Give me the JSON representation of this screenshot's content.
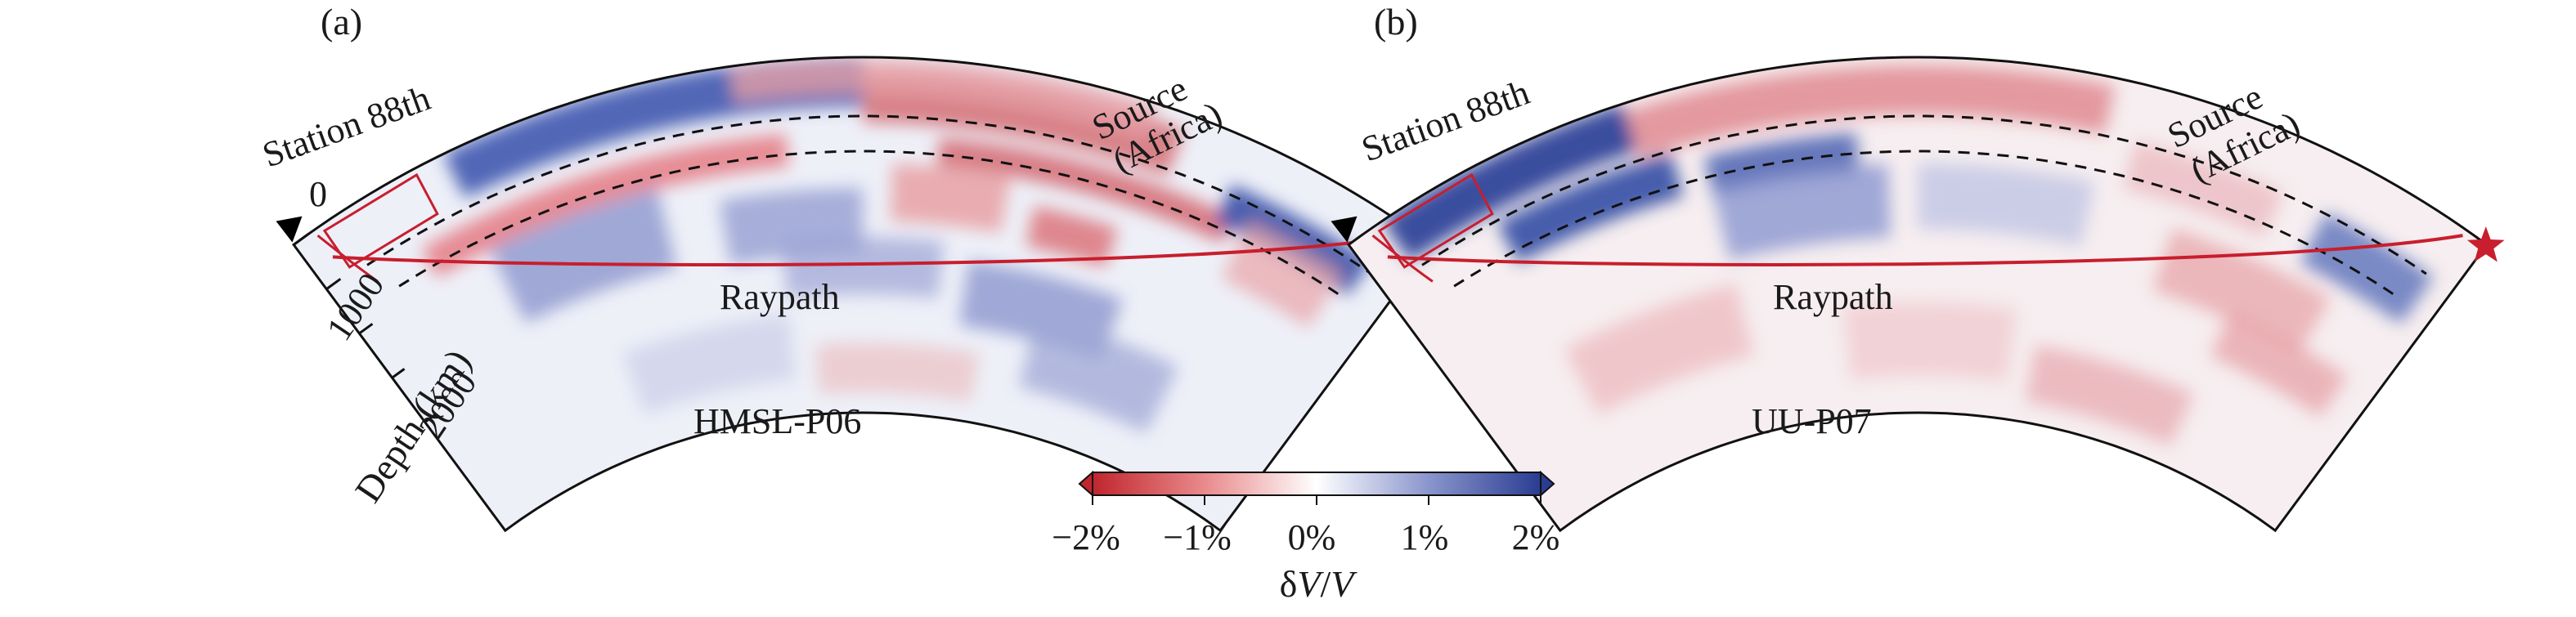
{
  "panels": [
    {
      "label": "(a)",
      "model": "HMSL-P06",
      "station": "Station 88th",
      "source_line1": "Source",
      "source_line2": "(Africa)",
      "raypath": "Raypath"
    },
    {
      "label": "(b)",
      "model": "UU-P07",
      "station": "Station 88th",
      "source_line1": "Source",
      "source_line2": "(Africa)",
      "raypath": "Raypath"
    }
  ],
  "depth_axis": {
    "title": "Depth (km)",
    "ticks": [
      "0",
      "1000",
      "2000"
    ]
  },
  "colorbar": {
    "ticks": [
      "−2%",
      "−1%",
      "0%",
      "1%",
      "2%"
    ],
    "label_prefix": "δ",
    "label_v1": "V",
    "label_slash": "/",
    "label_v2": "V",
    "colors": [
      "#c0262d",
      "#e98a8c",
      "#ffffff",
      "#8a95cc",
      "#2a3d92"
    ]
  },
  "colors": {
    "raypath": "#c81e2d",
    "source_star": "#c81e2d",
    "station_marker": "#000000",
    "dashed": "#111111"
  }
}
